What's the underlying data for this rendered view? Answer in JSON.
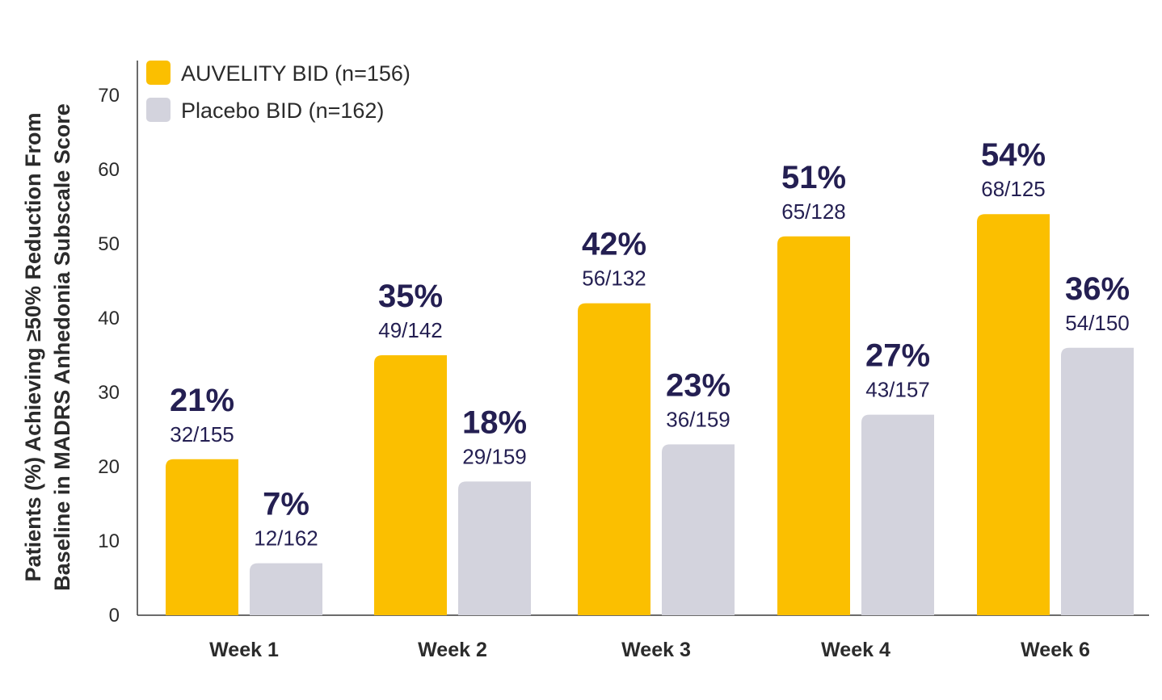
{
  "chart_data": {
    "type": "bar",
    "categories": [
      "Week 1",
      "Week 2",
      "Week 3",
      "Week 4",
      "Week 6"
    ],
    "series": [
      {
        "name": "AUVELITY BID (n=156)",
        "color": "#fbbf00",
        "values": [
          21,
          35,
          42,
          51,
          54
        ],
        "labels": [
          "21%",
          "35%",
          "42%",
          "51%",
          "54%"
        ],
        "fractions": [
          "32/155",
          "49/142",
          "56/132",
          "65/128",
          "68/125"
        ]
      },
      {
        "name": "Placebo BID (n=162)",
        "color": "#d3d3dd",
        "values": [
          7,
          18,
          23,
          27,
          36
        ],
        "labels": [
          "7%",
          "18%",
          "23%",
          "27%",
          "36%"
        ],
        "fractions": [
          "12/162",
          "29/159",
          "36/159",
          "43/157",
          "54/150"
        ]
      }
    ],
    "ylabel_line1": "Patients (%) Achieving ≥50% Reduction From",
    "ylabel_line2": "Baseline in MADRS Anhedonia Subscale Score",
    "xlabel": "",
    "ylim": [
      0,
      70
    ],
    "yticks": [
      "0",
      "10",
      "20",
      "30",
      "40",
      "50",
      "60",
      "70"
    ],
    "grid": false,
    "legend_position": "top-left",
    "label_color": "#241f52"
  }
}
